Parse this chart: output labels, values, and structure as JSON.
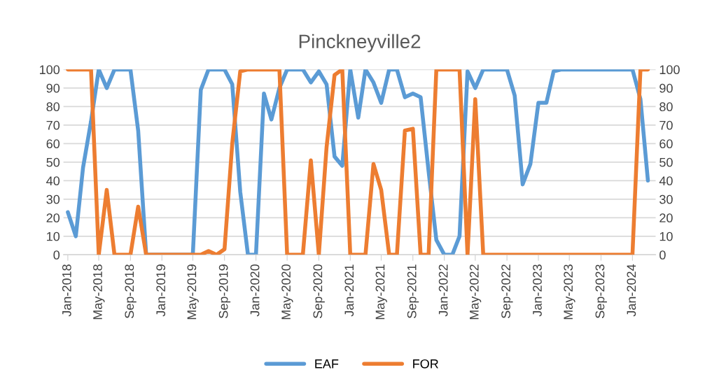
{
  "chart_data": {
    "type": "line",
    "title": "Pinckneyville2",
    "x": [
      "2018-01",
      "2018-02",
      "2018-03",
      "2018-04",
      "2018-05",
      "2018-06",
      "2018-07",
      "2018-08",
      "2018-09",
      "2018-10",
      "2018-11",
      "2018-12",
      "2019-01",
      "2019-02",
      "2019-03",
      "2019-04",
      "2019-05",
      "2019-06",
      "2019-07",
      "2019-08",
      "2019-09",
      "2019-10",
      "2019-11",
      "2019-12",
      "2020-01",
      "2020-02",
      "2020-03",
      "2020-04",
      "2020-05",
      "2020-06",
      "2020-07",
      "2020-08",
      "2020-09",
      "2020-10",
      "2020-11",
      "2020-12",
      "2021-01",
      "2021-02",
      "2021-03",
      "2021-04",
      "2021-05",
      "2021-06",
      "2021-07",
      "2021-08",
      "2021-09",
      "2021-10",
      "2021-11",
      "2021-12",
      "2022-01",
      "2022-02",
      "2022-03",
      "2022-04",
      "2022-05",
      "2022-06",
      "2022-07",
      "2022-08",
      "2022-09",
      "2022-10",
      "2022-11",
      "2022-12",
      "2023-01",
      "2023-02",
      "2023-03",
      "2023-04",
      "2023-05",
      "2023-06",
      "2023-07",
      "2023-08",
      "2023-09",
      "2023-10",
      "2023-11",
      "2023-12",
      "2024-01",
      "2024-02",
      "2024-03"
    ],
    "series": [
      {
        "name": "EAF",
        "color": "#5b9bd5",
        "values": [
          23,
          10,
          47,
          72,
          100,
          90,
          100,
          100,
          100,
          67,
          0,
          0,
          0,
          0,
          0,
          0,
          0,
          89,
          100,
          100,
          100,
          92,
          34,
          0,
          0,
          87,
          73,
          90,
          100,
          100,
          100,
          93,
          99,
          92,
          53,
          48,
          100,
          74,
          100,
          93,
          82,
          100,
          100,
          85,
          87,
          85,
          45,
          8,
          0,
          0,
          10,
          99,
          90,
          100,
          100,
          100,
          100,
          86,
          38,
          49,
          82,
          82,
          99,
          100,
          100,
          100,
          100,
          100,
          100,
          100,
          100,
          100,
          100,
          84,
          40
        ]
      },
      {
        "name": "FOR",
        "color": "#ed7d31",
        "axis": "y2",
        "values": [
          100,
          100,
          100,
          100,
          0,
          35,
          0,
          0,
          0,
          26,
          0,
          0,
          0,
          0,
          0,
          0,
          0,
          0,
          2,
          0,
          3,
          60,
          99,
          100,
          100,
          100,
          100,
          100,
          0,
          0,
          0,
          51,
          0,
          58,
          97,
          100,
          0,
          0,
          0,
          49,
          35,
          0,
          0,
          67,
          68,
          0,
          0,
          100,
          100,
          100,
          100,
          0,
          84,
          0,
          0,
          0,
          0,
          0,
          0,
          0,
          0,
          0,
          0,
          0,
          0,
          0,
          0,
          0,
          0,
          0,
          0,
          0,
          0,
          100,
          100
        ]
      }
    ],
    "xlim": [
      "2017-12-15",
      "2024-03-31"
    ],
    "xticks": [
      {
        "value": "2018-01",
        "label": "Jan-2018"
      },
      {
        "value": "2018-05",
        "label": "May-2018"
      },
      {
        "value": "2018-09",
        "label": "Sep-2018"
      },
      {
        "value": "2019-01",
        "label": "Jan-2019"
      },
      {
        "value": "2019-05",
        "label": "May-2019"
      },
      {
        "value": "2019-09",
        "label": "Sep-2019"
      },
      {
        "value": "2020-01",
        "label": "Jan-2020"
      },
      {
        "value": "2020-05",
        "label": "May-2020"
      },
      {
        "value": "2020-09",
        "label": "Sep-2020"
      },
      {
        "value": "2021-01",
        "label": "Jan-2021"
      },
      {
        "value": "2021-05",
        "label": "May-2021"
      },
      {
        "value": "2021-09",
        "label": "Sep-2021"
      },
      {
        "value": "2022-01",
        "label": "Jan-2022"
      },
      {
        "value": "2022-05",
        "label": "May-2022"
      },
      {
        "value": "2022-09",
        "label": "Sep-2022"
      },
      {
        "value": "2023-01",
        "label": "Jan-2023"
      },
      {
        "value": "2023-05",
        "label": "May-2023"
      },
      {
        "value": "2023-09",
        "label": "Sep-2023"
      },
      {
        "value": "2024-01",
        "label": "Jan-2024"
      }
    ],
    "ylim": [
      0,
      100
    ],
    "yticks": [
      0,
      10,
      20,
      30,
      40,
      50,
      60,
      70,
      80,
      90,
      100
    ],
    "y2lim": [
      0,
      100
    ],
    "y2ticks": [
      0,
      10,
      20,
      30,
      40,
      50,
      60,
      70,
      80,
      90,
      100
    ],
    "grid": "y",
    "legend": "bottom",
    "marker": "none",
    "line_style": "solid"
  }
}
